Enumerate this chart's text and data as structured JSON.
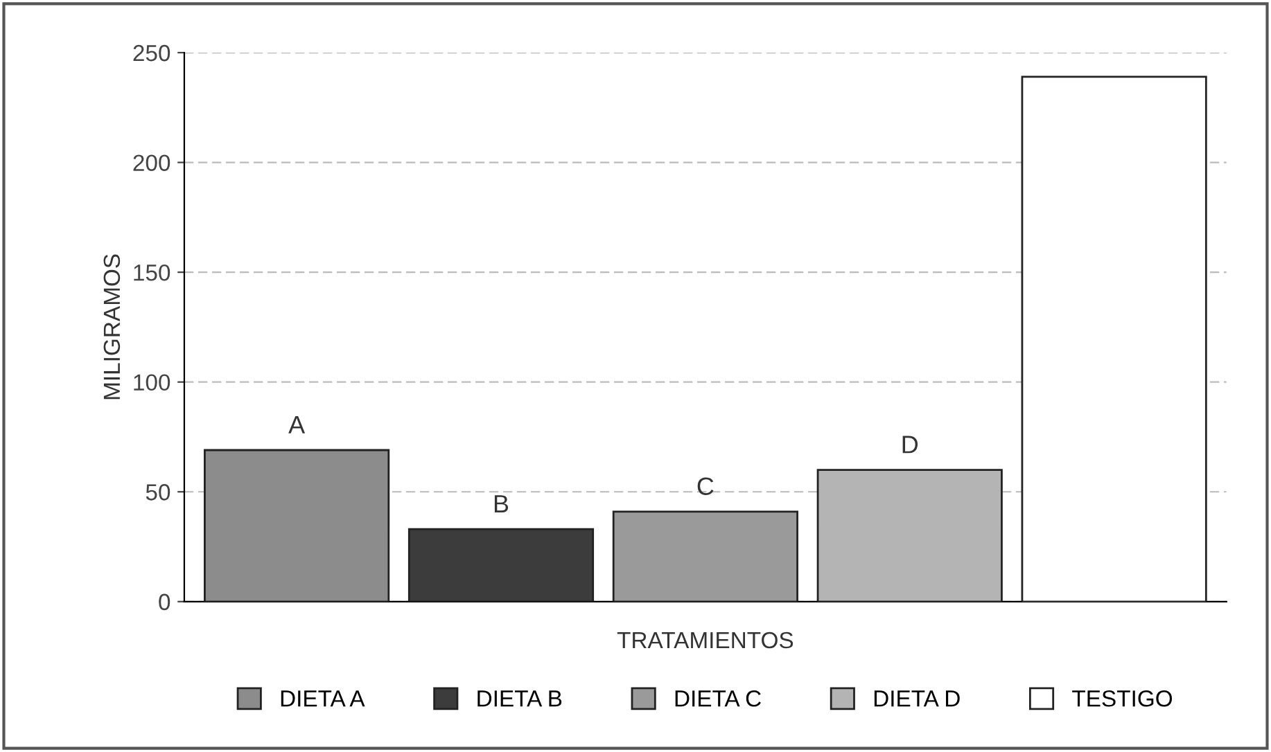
{
  "chart_data": {
    "type": "bar",
    "xlabel": "TRATAMIENTOS",
    "ylabel": "MILIGRAMOS",
    "categories": [
      null,
      null,
      null,
      null,
      null
    ],
    "series": [
      {
        "name": "DIETA A",
        "color": "#8c8c8c",
        "values": [
          69,
          null,
          null,
          null,
          null
        ]
      },
      {
        "name": "DIETA B",
        "color": "#3c3c3c",
        "values": [
          null,
          33,
          null,
          null,
          null
        ]
      },
      {
        "name": "DIETA C",
        "color": "#9a9a9a",
        "values": [
          null,
          null,
          41,
          null,
          null
        ]
      },
      {
        "name": "DIETA D",
        "color": "#b4b4b4",
        "values": [
          null,
          null,
          null,
          60,
          null
        ]
      },
      {
        "name": "TESTIGO",
        "color": "#ffffff",
        "values": [
          null,
          null,
          null,
          null,
          239
        ]
      }
    ],
    "annotations": [
      {
        "text": "A",
        "y": 69
      },
      {
        "text": "B",
        "y": 33
      },
      {
        "text": "C",
        "y": 41
      },
      {
        "text": "D",
        "y": 60
      }
    ],
    "ylim": [
      0,
      250
    ],
    "yticks": [
      0,
      50,
      100,
      150,
      200,
      250
    ],
    "grid": "y",
    "legend": "bottom"
  }
}
